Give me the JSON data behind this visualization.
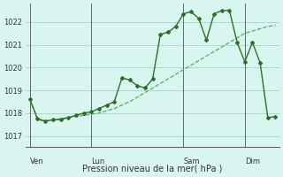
{
  "background_color": "#d8f5ef",
  "grid_color": "#b0d8cc",
  "line_color_main": "#2d6e2d",
  "line_color_light": "#5aaa5a",
  "title": "Pression niveau de la mer( hPa )",
  "ylim": [
    1016.5,
    1022.8
  ],
  "yticks": [
    1017,
    1018,
    1019,
    1020,
    1021,
    1022
  ],
  "xlim": [
    -0.5,
    32.5
  ],
  "x_day_labels": [
    [
      "Ven",
      0
    ],
    [
      "Lun",
      8
    ],
    [
      "Sam",
      20
    ],
    [
      "Dim",
      28
    ]
  ],
  "x_vlines": [
    0,
    8,
    20,
    28
  ],
  "series1_x": [
    0,
    1,
    2,
    3,
    4,
    5,
    6,
    7,
    8,
    9,
    10,
    11,
    12,
    13,
    14,
    15,
    16,
    17,
    18,
    19,
    20,
    21,
    22,
    23,
    24,
    25,
    26,
    27,
    28,
    29,
    30,
    31,
    32
  ],
  "series1_y": [
    1018.6,
    1017.7,
    1017.65,
    1017.7,
    1017.75,
    1017.8,
    1017.85,
    1017.9,
    1017.95,
    1018.0,
    1018.1,
    1018.2,
    1018.35,
    1018.5,
    1018.7,
    1018.9,
    1019.1,
    1019.3,
    1019.5,
    1019.7,
    1019.9,
    1020.1,
    1020.3,
    1020.5,
    1020.7,
    1020.9,
    1021.1,
    1021.3,
    1021.5,
    1021.6,
    1021.7,
    1021.8,
    1021.85
  ],
  "series2_x": [
    0,
    1,
    2,
    3,
    4,
    5,
    6,
    7,
    8,
    9,
    10,
    11,
    12,
    13,
    14,
    15,
    16,
    17,
    18,
    19,
    20,
    21,
    22,
    23,
    24,
    25,
    26,
    27,
    28,
    29,
    30,
    31,
    32
  ],
  "series2_y": [
    1018.6,
    1017.75,
    1017.65,
    1017.7,
    1017.72,
    1017.8,
    1017.9,
    1018.0,
    1018.05,
    1018.2,
    1018.35,
    1018.5,
    1019.55,
    1019.45,
    1019.2,
    1019.1,
    1019.5,
    1021.45,
    1021.55,
    1021.8,
    1022.35,
    1022.45,
    1022.15,
    1021.2,
    1022.35,
    1022.5,
    1022.5,
    1021.1,
    1020.25,
    1021.1,
    1020.2,
    1017.8,
    1017.85
  ]
}
